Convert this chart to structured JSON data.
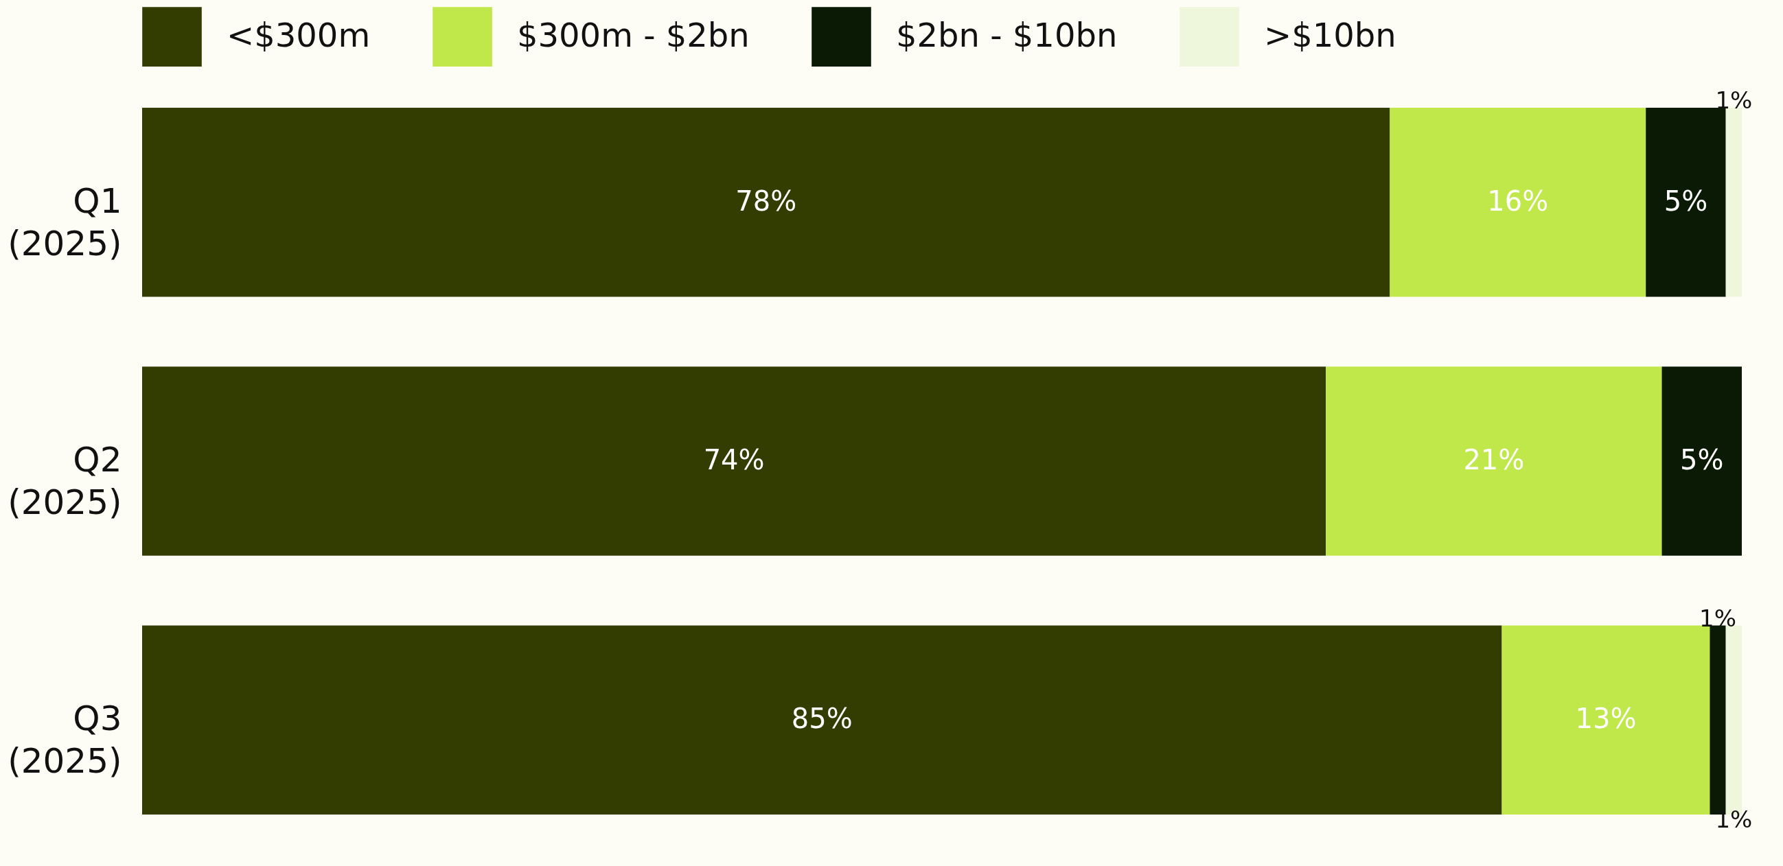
{
  "chart_data": {
    "type": "bar",
    "orientation": "horizontal",
    "stacked": true,
    "legend": "top",
    "categories": [
      "Q1 (2025)",
      "Q2 (2025)",
      "Q3 (2025)"
    ],
    "series": [
      {
        "name": "<$300m",
        "color": "#333d02",
        "values": [
          78,
          74,
          85
        ],
        "value_labels": [
          "78%",
          "74%",
          "85%"
        ]
      },
      {
        "name": "$300m - $2bn",
        "color": "#c0e84a",
        "values": [
          16,
          21,
          13
        ],
        "value_labels": [
          "16%",
          "21%",
          "13%"
        ]
      },
      {
        "name": "$2bn - $10bn",
        "color": "#0a1a04",
        "values": [
          5,
          5,
          1
        ],
        "value_labels": [
          "5%",
          "5%",
          "1%"
        ]
      },
      {
        "name": ">$10bn",
        "color": "#eef7dc",
        "values": [
          1,
          null,
          1
        ],
        "value_labels": [
          "1%",
          null,
          "1%"
        ]
      }
    ]
  }
}
